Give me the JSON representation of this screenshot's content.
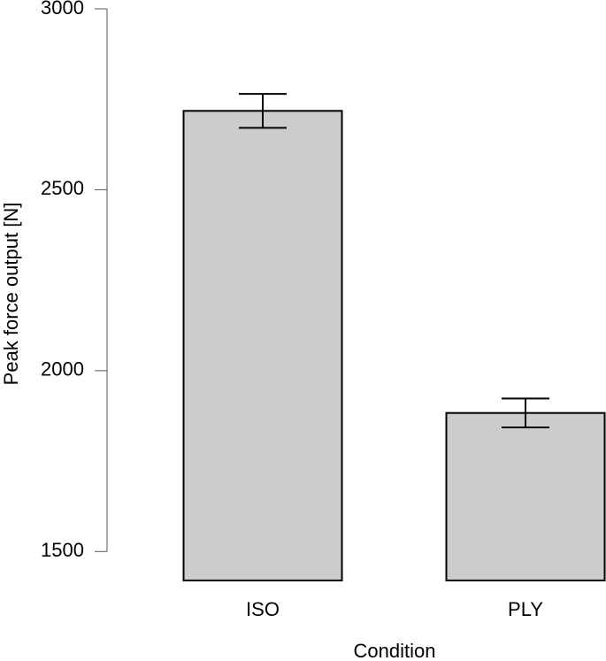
{
  "chart_data": {
    "type": "bar",
    "x_label": "Condition",
    "y_label": "Peak force output [N]",
    "categories": [
      "ISO",
      "PLY"
    ],
    "values": [
      2718,
      1883
    ],
    "errors": [
      47,
      40
    ],
    "color": "#cccccc",
    "ylim": [
      1420,
      3000
    ],
    "yticks": [
      1500,
      2000,
      2500,
      3000
    ],
    "grid": false
  }
}
